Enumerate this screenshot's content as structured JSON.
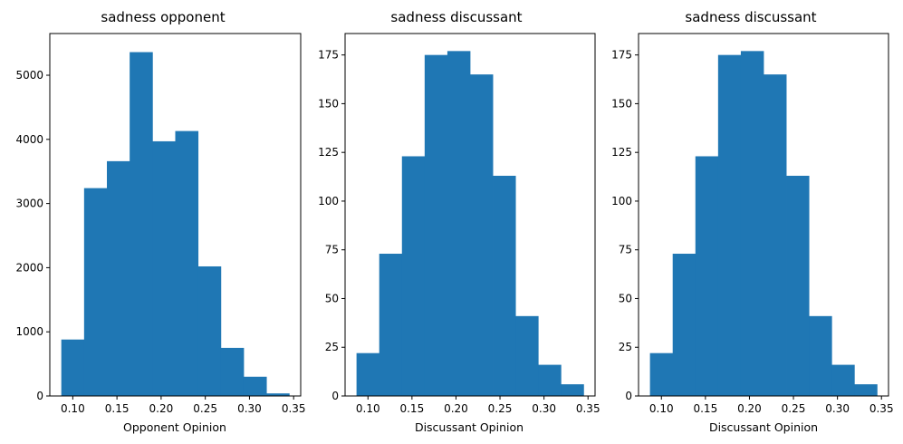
{
  "chart_data": [
    {
      "type": "bar",
      "title": "sadness opponent",
      "xlabel": "Opponent Opinion",
      "ylabel": "",
      "bin_edges": [
        0.087,
        0.1128,
        0.1386,
        0.1644,
        0.1902,
        0.216,
        0.2418,
        0.2676,
        0.2934,
        0.3192,
        0.345
      ],
      "values": [
        880,
        3240,
        3660,
        5360,
        3970,
        4130,
        2020,
        750,
        300,
        40
      ],
      "xlim": [
        0.074,
        0.358
      ],
      "ylim": [
        0,
        5650
      ],
      "xticks": [
        0.1,
        0.15,
        0.2,
        0.25,
        0.3,
        0.35
      ],
      "xtick_labels": [
        "0.10",
        "0.15",
        "0.20",
        "0.25",
        "0.30",
        "0.35"
      ],
      "yticks": [
        0,
        1000,
        2000,
        3000,
        4000,
        5000
      ],
      "ytick_labels": [
        "0",
        "1000",
        "2000",
        "3000",
        "4000",
        "5000"
      ]
    },
    {
      "type": "bar",
      "title": "sadness discussant",
      "xlabel": "Discussant Opinion",
      "ylabel": "",
      "bin_edges": [
        0.087,
        0.1128,
        0.1386,
        0.1644,
        0.1902,
        0.216,
        0.2418,
        0.2676,
        0.2934,
        0.3192,
        0.345
      ],
      "values": [
        22,
        73,
        123,
        175,
        177,
        165,
        113,
        41,
        16,
        6
      ],
      "xlim": [
        0.074,
        0.358
      ],
      "ylim": [
        0,
        186
      ],
      "xticks": [
        0.1,
        0.15,
        0.2,
        0.25,
        0.3,
        0.35
      ],
      "xtick_labels": [
        "0.10",
        "0.15",
        "0.20",
        "0.25",
        "0.30",
        "0.35"
      ],
      "yticks": [
        0,
        25,
        50,
        75,
        100,
        125,
        150,
        175
      ],
      "ytick_labels": [
        "0",
        "25",
        "50",
        "75",
        "100",
        "125",
        "150",
        "175"
      ]
    },
    {
      "type": "bar",
      "title": "sadness discussant",
      "xlabel": "Discussant Opinion",
      "ylabel": "",
      "bin_edges": [
        0.087,
        0.1128,
        0.1386,
        0.1644,
        0.1902,
        0.216,
        0.2418,
        0.2676,
        0.2934,
        0.3192,
        0.345
      ],
      "values": [
        22,
        73,
        123,
        175,
        177,
        165,
        113,
        41,
        16,
        6
      ],
      "xlim": [
        0.074,
        0.358
      ],
      "ylim": [
        0,
        186
      ],
      "xticks": [
        0.1,
        0.15,
        0.2,
        0.25,
        0.3,
        0.35
      ],
      "xtick_labels": [
        "0.10",
        "0.15",
        "0.20",
        "0.25",
        "0.30",
        "0.35"
      ],
      "yticks": [
        0,
        25,
        50,
        75,
        100,
        125,
        150,
        175
      ],
      "ytick_labels": [
        "0",
        "25",
        "50",
        "75",
        "100",
        "125",
        "150",
        "175"
      ]
    }
  ]
}
